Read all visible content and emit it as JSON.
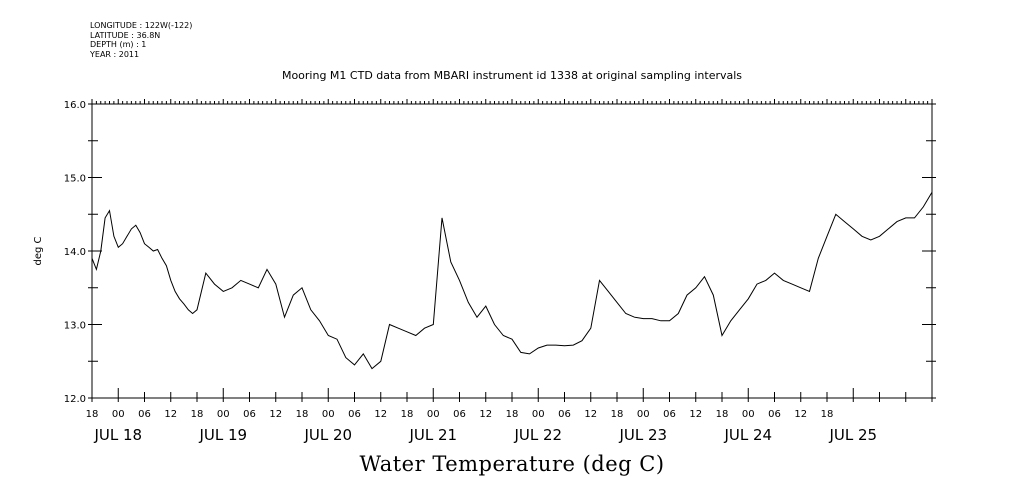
{
  "header": {
    "longitude": "LONGITUDE : 122W(-122)",
    "latitude": "LATITUDE : 36.8N",
    "depth": "DEPTH (m) : 1",
    "year": "YEAR : 2011"
  },
  "chart_data": {
    "type": "line",
    "title": "Mooring M1 CTD data from MBARI instrument id 1338 at original sampling intervals",
    "xlabel": "Water Temperature (deg C)",
    "ylabel": "deg C",
    "ylim": [
      12.0,
      16.0
    ],
    "y_ticks": [
      "12.0",
      "13.0",
      "14.0",
      "15.0",
      "16.0"
    ],
    "x_hour_labels": [
      "18",
      "00",
      "06",
      "12",
      "18",
      "00",
      "06",
      "12",
      "18",
      "00",
      "06",
      "12",
      "18",
      "00",
      "06",
      "12",
      "18",
      "00",
      "06",
      "12",
      "18",
      "00",
      "06",
      "12",
      "18",
      "00",
      "06",
      "12",
      "18"
    ],
    "x_day_labels": [
      "JUL 18",
      "JUL 19",
      "JUL 20",
      "JUL 21",
      "JUL 22",
      "JUL 23",
      "JUL 24",
      "JUL 25"
    ],
    "series": [
      {
        "x_hours": [
          0,
          1,
          2,
          3,
          4,
          5,
          6,
          7,
          8,
          9,
          10,
          11,
          12,
          13,
          14,
          15,
          16,
          17,
          18,
          19,
          20,
          21,
          22,
          23,
          24,
          26,
          28,
          30,
          32,
          34,
          36,
          38,
          40,
          42,
          44,
          46,
          48,
          50,
          52,
          54,
          56,
          58,
          60,
          62,
          64,
          66,
          68,
          70,
          72,
          74,
          76,
          78,
          80,
          82,
          84,
          86,
          88,
          90,
          92,
          94,
          96,
          98,
          100,
          102,
          104,
          106,
          108,
          110,
          112,
          114,
          116,
          118,
          120,
          122,
          124,
          126,
          128,
          130,
          132,
          134,
          136,
          138,
          140,
          142,
          144,
          146,
          148,
          150,
          152,
          154,
          156,
          158,
          160,
          162,
          164,
          166,
          168,
          170,
          172,
          174,
          176,
          178,
          180,
          182,
          184,
          186,
          188,
          190,
          192
        ],
        "values": [
          13.9,
          13.75,
          14.0,
          14.45,
          14.55,
          14.2,
          14.05,
          14.1,
          14.2,
          14.3,
          14.35,
          14.25,
          14.1,
          14.05,
          14.0,
          14.02,
          13.9,
          13.8,
          13.6,
          13.45,
          13.35,
          13.28,
          13.2,
          13.15,
          13.2,
          13.7,
          13.55,
          13.45,
          13.5,
          13.6,
          13.55,
          13.5,
          13.75,
          13.55,
          13.1,
          13.4,
          13.5,
          13.2,
          13.05,
          12.85,
          12.8,
          12.55,
          12.45,
          12.6,
          12.4,
          12.5,
          13.0,
          12.95,
          12.9,
          12.85,
          12.95,
          13.0,
          14.45,
          13.85,
          13.6,
          13.3,
          13.1,
          13.25,
          13.0,
          12.85,
          12.8,
          12.62,
          12.6,
          12.68,
          12.72,
          12.72,
          12.71,
          12.72,
          12.78,
          12.95,
          13.6,
          13.45,
          13.3,
          13.15,
          13.1,
          13.08,
          13.08,
          13.05,
          13.05,
          13.15,
          13.4,
          13.5,
          13.65,
          13.4,
          12.85,
          13.05,
          13.2,
          13.35,
          13.55,
          13.6,
          13.7,
          13.6,
          13.55,
          13.5,
          13.45,
          13.9,
          14.2,
          14.5,
          14.4,
          14.3,
          14.2,
          14.15,
          14.2,
          14.3,
          14.4,
          14.45,
          14.45,
          14.6,
          14.8
        ]
      }
    ]
  }
}
